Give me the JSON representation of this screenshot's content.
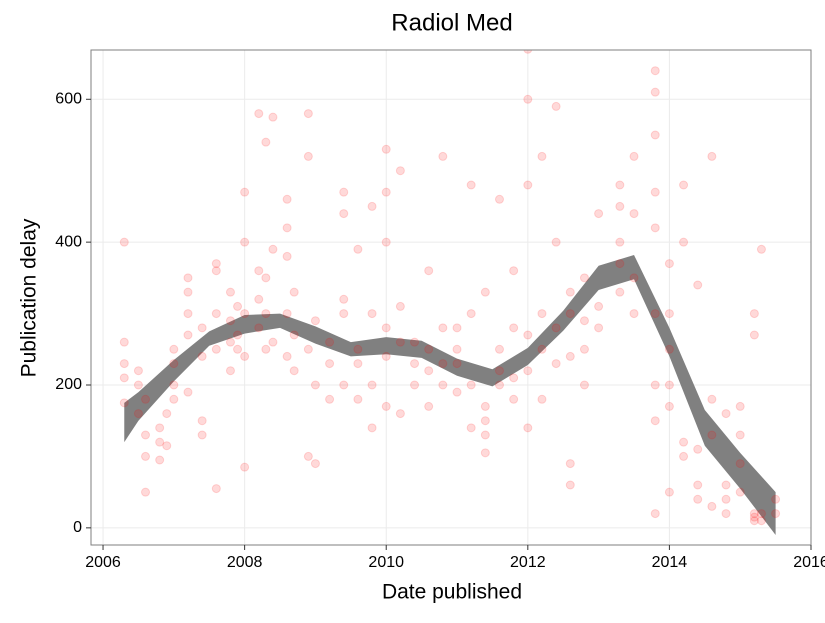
{
  "chart_data": {
    "type": "scatter",
    "title": "Radiol Med",
    "x_label": "Date published",
    "y_label": "Publication delay",
    "xlim": [
      2005.83,
      2016.0
    ],
    "ylim": [
      -24,
      669
    ],
    "xticks": [
      2006,
      2008,
      2010,
      2012,
      2014,
      2016
    ],
    "yticks": [
      0,
      200,
      400,
      600
    ],
    "grid": true,
    "points": {
      "color": "#ff0000",
      "x": [
        2006.3,
        2006.3,
        2006.3,
        2006.3,
        2006.3,
        2006.5,
        2006.5,
        2006.5,
        2006.6,
        2006.6,
        2006.6,
        2006.6,
        2006.8,
        2006.8,
        2006.8,
        2006.9,
        2006.9,
        2007.0,
        2007.0,
        2007.0,
        2007.0,
        2007.2,
        2007.2,
        2007.2,
        2007.2,
        2007.2,
        2007.4,
        2007.4,
        2007.4,
        2007.4,
        2007.6,
        2007.6,
        2007.6,
        2007.6,
        2007.6,
        2007.8,
        2007.8,
        2007.8,
        2007.8,
        2007.9,
        2007.9,
        2007.9,
        2008.0,
        2008.0,
        2008.0,
        2008.0,
        2008.0,
        2008.2,
        2008.2,
        2008.2,
        2008.2,
        2008.3,
        2008.3,
        2008.3,
        2008.3,
        2008.4,
        2008.4,
        2008.4,
        2008.6,
        2008.6,
        2008.6,
        2008.6,
        2008.6,
        2008.7,
        2008.7,
        2008.7,
        2008.9,
        2008.9,
        2008.9,
        2008.9,
        2009.0,
        2009.0,
        2009.0,
        2009.2,
        2009.2,
        2009.2,
        2009.4,
        2009.4,
        2009.4,
        2009.4,
        2009.4,
        2009.6,
        2009.6,
        2009.6,
        2009.6,
        2009.8,
        2009.8,
        2009.8,
        2009.8,
        2010.0,
        2010.0,
        2010.0,
        2010.0,
        2010.0,
        2010.0,
        2010.2,
        2010.2,
        2010.2,
        2010.2,
        2010.4,
        2010.4,
        2010.4,
        2010.6,
        2010.6,
        2010.6,
        2010.6,
        2010.8,
        2010.8,
        2010.8,
        2010.8,
        2011.0,
        2011.0,
        2011.0,
        2011.0,
        2011.2,
        2011.2,
        2011.2,
        2011.2,
        2011.4,
        2011.4,
        2011.4,
        2011.4,
        2011.4,
        2011.6,
        2011.6,
        2011.6,
        2011.6,
        2011.8,
        2011.8,
        2011.8,
        2011.8,
        2012.0,
        2012.0,
        2012.0,
        2012.0,
        2012.0,
        2012.0,
        2012.2,
        2012.2,
        2012.2,
        2012.2,
        2012.4,
        2012.4,
        2012.4,
        2012.4,
        2012.6,
        2012.6,
        2012.6,
        2012.6,
        2012.6,
        2012.8,
        2012.8,
        2012.8,
        2012.8,
        2013.0,
        2013.0,
        2013.0,
        2013.3,
        2013.3,
        2013.3,
        2013.3,
        2013.3,
        2013.5,
        2013.5,
        2013.5,
        2013.5,
        2013.8,
        2013.8,
        2013.8,
        2013.8,
        2013.8,
        2013.8,
        2013.8,
        2013.8,
        2013.8,
        2014.0,
        2014.0,
        2014.0,
        2014.0,
        2014.0,
        2014.0,
        2014.2,
        2014.2,
        2014.2,
        2014.2,
        2014.4,
        2014.4,
        2014.4,
        2014.4,
        2014.6,
        2014.6,
        2014.6,
        2014.6,
        2014.8,
        2014.8,
        2014.8,
        2014.8,
        2015.0,
        2015.0,
        2015.0,
        2015.0,
        2015.2,
        2015.2,
        2015.2,
        2015.2,
        2015.2,
        2015.3,
        2015.3,
        2015.3,
        2015.5,
        2015.5
      ],
      "y": [
        175,
        230,
        260,
        400,
        210,
        160,
        220,
        200,
        130,
        100,
        50,
        180,
        140,
        120,
        95,
        115,
        160,
        200,
        250,
        180,
        230,
        330,
        300,
        270,
        350,
        190,
        280,
        150,
        130,
        240,
        370,
        360,
        300,
        250,
        55,
        290,
        260,
        330,
        220,
        270,
        310,
        250,
        470,
        400,
        240,
        300,
        85,
        580,
        360,
        320,
        280,
        540,
        350,
        300,
        250,
        575,
        390,
        260,
        460,
        420,
        380,
        300,
        240,
        330,
        270,
        220,
        520,
        580,
        100,
        250,
        290,
        90,
        200,
        260,
        230,
        180,
        320,
        300,
        470,
        440,
        200,
        250,
        180,
        390,
        230,
        450,
        300,
        140,
        200,
        530,
        470,
        400,
        280,
        240,
        170,
        500,
        310,
        260,
        160,
        230,
        260,
        200,
        360,
        250,
        220,
        170,
        520,
        230,
        280,
        200,
        250,
        280,
        190,
        230,
        480,
        300,
        140,
        200,
        330,
        170,
        130,
        150,
        105,
        460,
        250,
        220,
        200,
        360,
        210,
        180,
        280,
        670,
        600,
        480,
        270,
        220,
        140,
        520,
        250,
        300,
        180,
        590,
        400,
        280,
        230,
        240,
        90,
        60,
        330,
        300,
        350,
        290,
        250,
        200,
        440,
        310,
        280,
        480,
        450,
        400,
        370,
        330,
        520,
        440,
        350,
        300,
        640,
        610,
        550,
        470,
        420,
        300,
        200,
        150,
        20,
        370,
        300,
        250,
        200,
        170,
        50,
        480,
        400,
        120,
        100,
        340,
        110,
        60,
        40,
        520,
        180,
        130,
        30,
        160,
        60,
        40,
        20,
        170,
        130,
        90,
        50,
        300,
        270,
        20,
        15,
        10,
        390,
        10,
        20,
        40,
        20
      ]
    },
    "smooth": {
      "color": "#808080",
      "x": [
        2006.3,
        2006.5,
        2007.0,
        2007.5,
        2008.0,
        2008.5,
        2009.0,
        2009.5,
        2010.0,
        2010.5,
        2011.0,
        2011.5,
        2012.0,
        2012.5,
        2013.0,
        2013.5,
        2014.0,
        2014.5,
        2015.0,
        2015.5
      ],
      "lower": [
        120,
        150,
        205,
        255,
        272,
        280,
        258,
        240,
        243,
        238,
        213,
        198,
        228,
        276,
        333,
        348,
        240,
        115,
        55,
        -10
      ],
      "upper": [
        175,
        190,
        235,
        275,
        298,
        300,
        282,
        260,
        267,
        262,
        237,
        222,
        252,
        304,
        367,
        382,
        280,
        165,
        105,
        50
      ]
    }
  }
}
